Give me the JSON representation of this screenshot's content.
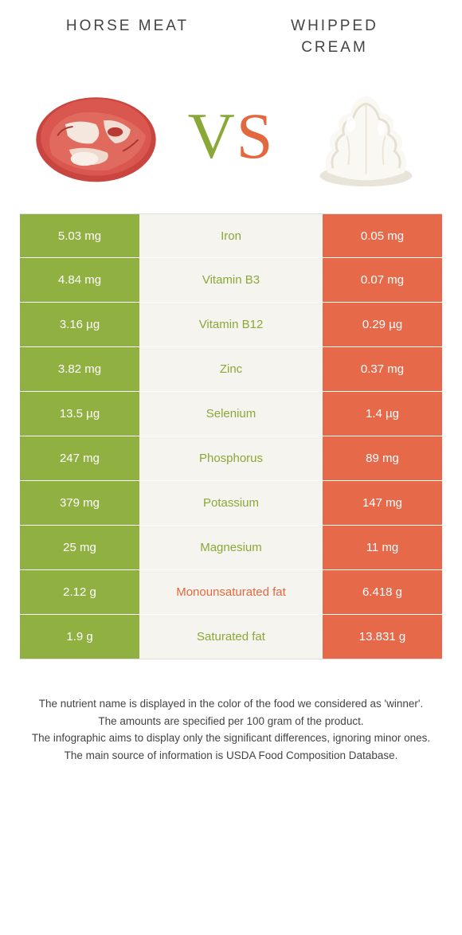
{
  "header": {
    "left_title": "Horse meat",
    "right_title_line1": "Whipped",
    "right_title_line2": "cream",
    "vs_v": "V",
    "vs_s": "S"
  },
  "colors": {
    "left_bg": "#90b041",
    "right_bg": "#e6694a",
    "mid_bg": "#f6f4ef",
    "left_text": "#8aa838",
    "right_text": "#e2683f"
  },
  "table": {
    "rows": [
      {
        "left": "5.03 mg",
        "nutrient": "Iron",
        "right": "0.05 mg",
        "winner": "left"
      },
      {
        "left": "4.84 mg",
        "nutrient": "Vitamin B3",
        "right": "0.07 mg",
        "winner": "left"
      },
      {
        "left": "3.16 µg",
        "nutrient": "Vitamin B12",
        "right": "0.29 µg",
        "winner": "left"
      },
      {
        "left": "3.82 mg",
        "nutrient": "Zinc",
        "right": "0.37 mg",
        "winner": "left"
      },
      {
        "left": "13.5 µg",
        "nutrient": "Selenium",
        "right": "1.4 µg",
        "winner": "left"
      },
      {
        "left": "247 mg",
        "nutrient": "Phosphorus",
        "right": "89 mg",
        "winner": "left"
      },
      {
        "left": "379 mg",
        "nutrient": "Potassium",
        "right": "147 mg",
        "winner": "left"
      },
      {
        "left": "25 mg",
        "nutrient": "Magnesium",
        "right": "11 mg",
        "winner": "left"
      },
      {
        "left": "2.12 g",
        "nutrient": "Monounsaturated fat",
        "right": "6.418 g",
        "winner": "right"
      },
      {
        "left": "1.9 g",
        "nutrient": "Saturated fat",
        "right": "13.831 g",
        "winner": "left"
      }
    ]
  },
  "footer": {
    "line1": "The nutrient name is displayed in the color of the food we considered as 'winner'.",
    "line2": "The amounts are specified per 100 gram of the product.",
    "line3": "The infographic aims to display only the significant differences, ignoring minor ones.",
    "line4": "The main source of information is USDA Food Composition Database."
  }
}
